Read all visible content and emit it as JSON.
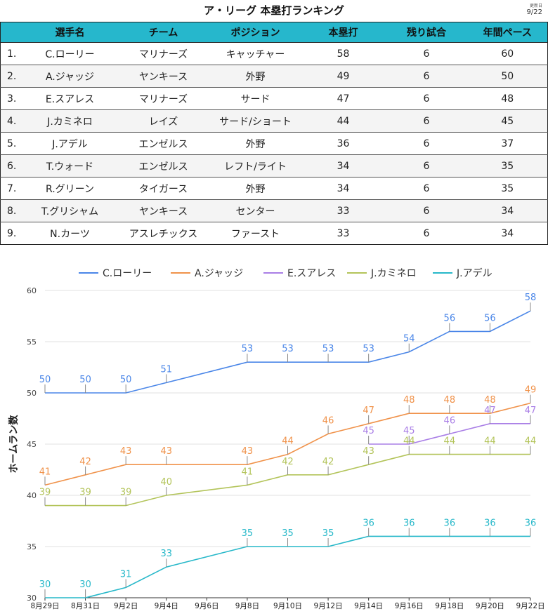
{
  "header": {
    "title": "ア・リーグ 本塁打ランキング",
    "updated_label": "更新日",
    "updated_value": "9/22"
  },
  "table": {
    "columns": [
      "",
      "選手名",
      "チーム",
      "ポジション",
      "本塁打",
      "残り試合",
      "年間ペース"
    ],
    "rows": [
      [
        "1.",
        "C.ローリー",
        "マリナーズ",
        "キャッチャー",
        "58",
        "6",
        "60"
      ],
      [
        "2.",
        "A.ジャッジ",
        "ヤンキース",
        "外野",
        "49",
        "6",
        "50"
      ],
      [
        "3.",
        "E.スアレス",
        "マリナーズ",
        "サード",
        "47",
        "6",
        "48"
      ],
      [
        "4.",
        "J.カミネロ",
        "レイズ",
        "サード/ショート",
        "44",
        "6",
        "45"
      ],
      [
        "5.",
        "J.アデル",
        "エンゼルス",
        "外野",
        "36",
        "6",
        "37"
      ],
      [
        "6.",
        "T.ウォード",
        "エンゼルス",
        "レフト/ライト",
        "34",
        "6",
        "35"
      ],
      [
        "7.",
        "R.グリーン",
        "タイガース",
        "外野",
        "34",
        "6",
        "35"
      ],
      [
        "8.",
        "T.グリシャム",
        "ヤンキース",
        "センター",
        "33",
        "6",
        "34"
      ],
      [
        "9.",
        "N.カーツ",
        "アスレチックス",
        "ファースト",
        "33",
        "6",
        "34"
      ]
    ]
  },
  "chart_data": {
    "type": "line",
    "title": "",
    "xlabel": "",
    "ylabel": "ホームラン数",
    "ylim": [
      30,
      60
    ],
    "yticks": [
      30,
      35,
      40,
      45,
      50,
      55,
      60
    ],
    "xlim": [
      "8月29日",
      "9月22日"
    ],
    "x_ticks": [
      "8月29日",
      "8月31日",
      "9月2日",
      "9月4日",
      "9月6日",
      "9月8日",
      "9月10日",
      "9月12日",
      "9月14日",
      "9月16日",
      "9月18日",
      "9月20日",
      "9月22日"
    ],
    "grid": true,
    "legend_position": "top",
    "series": [
      {
        "name": "C.ローリー",
        "color": "#4a86e8",
        "points": [
          {
            "x": "8月29日",
            "y": 50
          },
          {
            "x": "8月31日",
            "y": 50
          },
          {
            "x": "9月2日",
            "y": 50
          },
          {
            "x": "9月4日",
            "y": 51
          },
          {
            "x": "9月8日",
            "y": 53
          },
          {
            "x": "9月10日",
            "y": 53
          },
          {
            "x": "9月12日",
            "y": 53
          },
          {
            "x": "9月14日",
            "y": 53
          },
          {
            "x": "9月16日",
            "y": 54
          },
          {
            "x": "9月18日",
            "y": 56
          },
          {
            "x": "9月20日",
            "y": 56
          },
          {
            "x": "9月22日",
            "y": 58
          }
        ]
      },
      {
        "name": "A.ジャッジ",
        "color": "#f0924a",
        "points": [
          {
            "x": "8月29日",
            "y": 41
          },
          {
            "x": "8月31日",
            "y": 42
          },
          {
            "x": "9月2日",
            "y": 43
          },
          {
            "x": "9月4日",
            "y": 43
          },
          {
            "x": "9月8日",
            "y": 43
          },
          {
            "x": "9月10日",
            "y": 44
          },
          {
            "x": "9月12日",
            "y": 46
          },
          {
            "x": "9月14日",
            "y": 47
          },
          {
            "x": "9月16日",
            "y": 48
          },
          {
            "x": "9月18日",
            "y": 48
          },
          {
            "x": "9月20日",
            "y": 48
          },
          {
            "x": "9月22日",
            "y": 49
          }
        ]
      },
      {
        "name": "E.スアレス",
        "color": "#a97ee6",
        "points": [
          {
            "x": "9月14日",
            "y": 45
          },
          {
            "x": "9月16日",
            "y": 45
          },
          {
            "x": "9月18日",
            "y": 46
          },
          {
            "x": "9月20日",
            "y": 47
          },
          {
            "x": "9月22日",
            "y": 47
          }
        ]
      },
      {
        "name": "J.カミネロ",
        "color": "#b3c45a",
        "points": [
          {
            "x": "8月29日",
            "y": 39
          },
          {
            "x": "8月31日",
            "y": 39
          },
          {
            "x": "9月2日",
            "y": 39
          },
          {
            "x": "9月4日",
            "y": 40
          },
          {
            "x": "9月8日",
            "y": 41
          },
          {
            "x": "9月10日",
            "y": 42
          },
          {
            "x": "9月12日",
            "y": 42
          },
          {
            "x": "9月14日",
            "y": 43
          },
          {
            "x": "9月16日",
            "y": 44
          },
          {
            "x": "9月18日",
            "y": 44
          },
          {
            "x": "9月20日",
            "y": 44
          },
          {
            "x": "9月22日",
            "y": 44
          }
        ]
      },
      {
        "name": "J.アデル",
        "color": "#27b8c9",
        "points": [
          {
            "x": "8月29日",
            "y": 30
          },
          {
            "x": "8月31日",
            "y": 30
          },
          {
            "x": "9月2日",
            "y": 31
          },
          {
            "x": "9月4日",
            "y": 33
          },
          {
            "x": "9月8日",
            "y": 35
          },
          {
            "x": "9月10日",
            "y": 35
          },
          {
            "x": "9月12日",
            "y": 35
          },
          {
            "x": "9月14日",
            "y": 36
          },
          {
            "x": "9月16日",
            "y": 36
          },
          {
            "x": "9月18日",
            "y": 36
          },
          {
            "x": "9月20日",
            "y": 36
          },
          {
            "x": "9月22日",
            "y": 36
          }
        ]
      }
    ]
  }
}
